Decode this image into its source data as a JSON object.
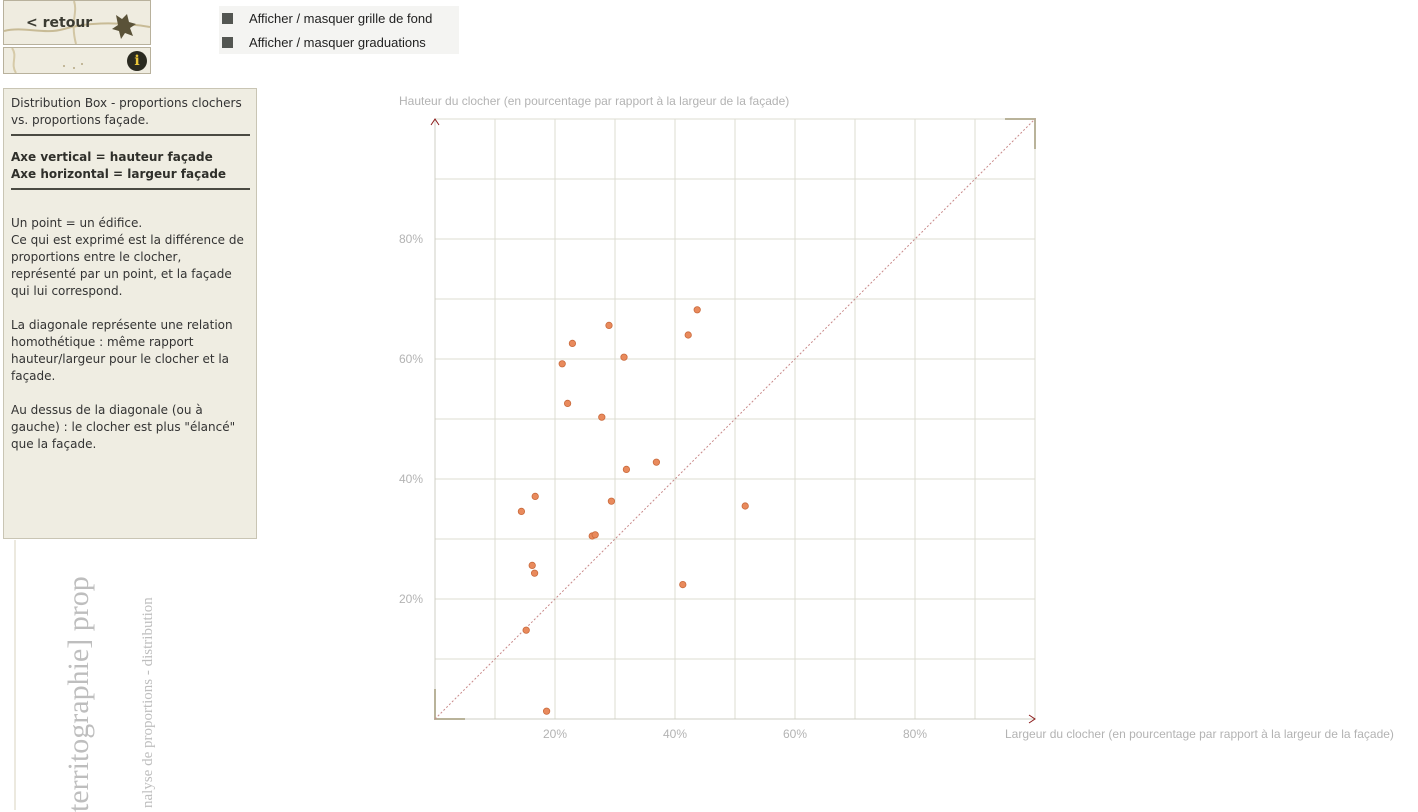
{
  "nav": {
    "back_label": "< retour",
    "info_label": "i"
  },
  "toggles": [
    {
      "label": "Afficher / masquer grille de fond"
    },
    {
      "label": "Afficher / masquer graduations"
    }
  ],
  "side_titles": {
    "main": "territographie] prop",
    "sub": "nalyse de proportions - distribution"
  },
  "description": {
    "title": "Distribution Box - proportions clochers vs. proportions façade.",
    "axis_vertical": "Axe vertical = hauteur façade",
    "axis_horizontal": "Axe horizontal = largeur façade",
    "point_line": "Un point = un édifice.",
    "point_text": "Ce qui est exprimé est la différence de proportions entre le clocher, représenté par un point, et la façade qui lui correspond.",
    "diagonal_text": "La diagonale représente une relation homothétique : même rapport hauteur/largeur pour le clocher et la façade.",
    "above_text": "Au dessus de la diagonale (ou à gauche) : le clocher est plus \"élancé\" que la façade."
  },
  "colors": {
    "point": "#e98a5c",
    "point_stroke": "#c96a3c",
    "grid": "#dcdcd2",
    "axis_arrow": "#8b1a1a",
    "diagonal": "#c98a8a"
  },
  "chart_data": {
    "type": "scatter",
    "title": "",
    "xlabel": "Largeur du clocher (en pourcentage par rapport à la largeur de la façade)",
    "ylabel": "Hauteur du clocher (en pourcentage par rapport à la largeur de la façade)",
    "xlim": [
      0,
      100
    ],
    "ylim": [
      0,
      100
    ],
    "x_ticks": [
      20,
      40,
      60,
      80
    ],
    "y_ticks": [
      20,
      40,
      60,
      80
    ],
    "x_tick_labels": [
      "20%",
      "40%",
      "60%",
      "80%"
    ],
    "y_tick_labels": [
      "20%",
      "40%",
      "60%",
      "80%"
    ],
    "grid": true,
    "diagonal": true,
    "points": [
      {
        "x": 43.7,
        "y": 68.2
      },
      {
        "x": 29.0,
        "y": 65.6
      },
      {
        "x": 42.2,
        "y": 64.0
      },
      {
        "x": 22.9,
        "y": 62.6
      },
      {
        "x": 31.5,
        "y": 60.3
      },
      {
        "x": 21.2,
        "y": 59.2
      },
      {
        "x": 22.1,
        "y": 52.6
      },
      {
        "x": 27.8,
        "y": 50.3
      },
      {
        "x": 36.9,
        "y": 42.8
      },
      {
        "x": 31.9,
        "y": 41.6
      },
      {
        "x": 16.7,
        "y": 37.1
      },
      {
        "x": 29.4,
        "y": 36.3
      },
      {
        "x": 51.7,
        "y": 35.5
      },
      {
        "x": 14.4,
        "y": 34.6
      },
      {
        "x": 26.2,
        "y": 30.5
      },
      {
        "x": 26.7,
        "y": 30.7
      },
      {
        "x": 16.2,
        "y": 25.6
      },
      {
        "x": 16.6,
        "y": 24.3
      },
      {
        "x": 41.3,
        "y": 22.4
      },
      {
        "x": 15.2,
        "y": 14.8
      },
      {
        "x": 18.6,
        "y": 1.3
      }
    ]
  }
}
